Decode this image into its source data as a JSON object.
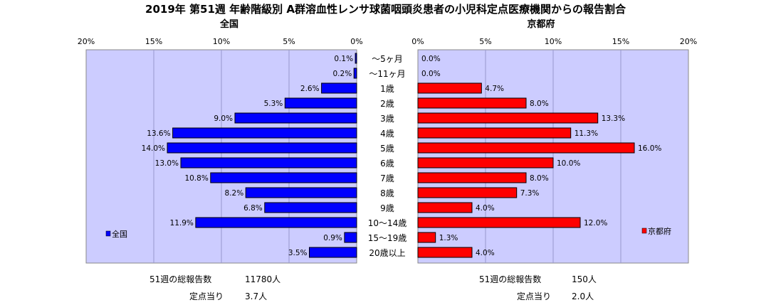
{
  "title": "2019年 第51週 年齢階級別 A群溶血性レンサ球菌咽頭炎患者の小児科定点医療機関からの報告割合",
  "left_panel": {
    "name": "全国",
    "legend": "全国",
    "color": "#0000ff",
    "axis_ticks": [
      "20%",
      "15%",
      "10%",
      "5%",
      "0%"
    ],
    "footer": {
      "total_label": "51週の総報告数",
      "total_value": "11780人",
      "per_label": "定点当り",
      "per_value": "3.7人"
    }
  },
  "right_panel": {
    "name": "京都府",
    "legend": "京都府",
    "color": "#ff0000",
    "axis_ticks": [
      "0%",
      "5%",
      "10%",
      "15%",
      "20%"
    ],
    "footer": {
      "total_label": "51週の総報告数",
      "total_value": "150人",
      "per_label": "定点当り",
      "per_value": "2.0人"
    }
  },
  "colors": {
    "plot_bg": "#ccccff",
    "grid": "#9999cc"
  },
  "chart_data": {
    "type": "bar",
    "orientation": "horizontal-butterfly",
    "categories": [
      "～5ヶ月",
      "～11ヶ月",
      "1歳",
      "2歳",
      "3歳",
      "4歳",
      "5歳",
      "6歳",
      "7歳",
      "8歳",
      "9歳",
      "10～14歳",
      "15～19歳",
      "20歳以上"
    ],
    "xlim": [
      0,
      20
    ],
    "unit": "%",
    "series": [
      {
        "name": "全国",
        "values": [
          0.1,
          0.2,
          2.6,
          5.3,
          9.0,
          13.6,
          14.0,
          13.0,
          10.8,
          8.2,
          6.8,
          11.9,
          0.9,
          3.5
        ],
        "labels": [
          "0.1%",
          "0.2%",
          "2.6%",
          "5.3%",
          "9.0%",
          "13.6%",
          "14.0%",
          "13.0%",
          "10.8%",
          "8.2%",
          "6.8%",
          "11.9%",
          "0.9%",
          "3.5%"
        ]
      },
      {
        "name": "京都府",
        "values": [
          0.0,
          0.0,
          4.7,
          8.0,
          13.3,
          11.3,
          16.0,
          10.0,
          8.0,
          7.3,
          4.0,
          12.0,
          1.3,
          4.0
        ],
        "labels": [
          "0.0%",
          "0.0%",
          "4.7%",
          "8.0%",
          "13.3%",
          "11.3%",
          "16.0%",
          "10.0%",
          "8.0%",
          "7.3%",
          "4.0%",
          "12.0%",
          "1.3%",
          "4.0%"
        ]
      }
    ]
  }
}
